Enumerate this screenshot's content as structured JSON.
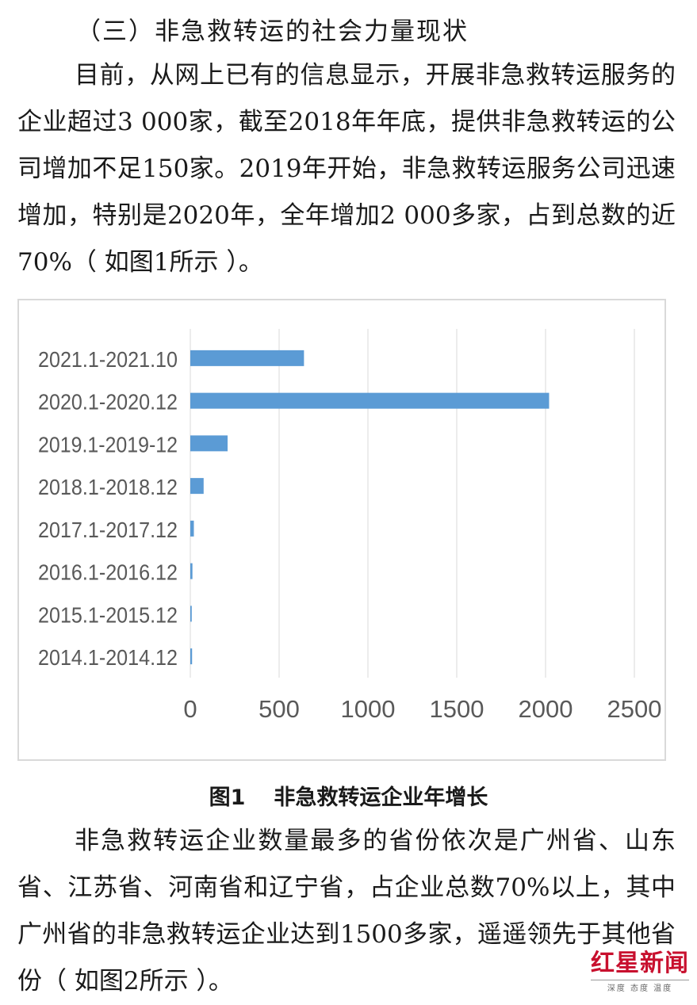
{
  "section_title": "（三）非急救转运的社会力量现状",
  "paragraph1": "目前，从网上已有的信息显示，开展非急救转运服务的企业超过3 000家，截至2018年年底，提供非急救转运的公司增加不足150家。2019年开始，非急救转运服务公司迅速增加，特别是2020年，全年增加2 000多家，占到总数的近70%（ 如图1所示 ）。",
  "figure_caption": {
    "number": "图1",
    "title": "非急救转运企业年增长"
  },
  "paragraph2": "非急救转运企业数量最多的省份依次是广州省、山东省、江苏省、河南省和辽宁省，占企业总数70%以上，其中广州省的非急救转运企业达到1500多家，遥遥领先于其他省份（ 如图2所示 ）。",
  "watermark": {
    "name": "红星新闻",
    "tagline": "深度 态度 温度"
  },
  "chart_data": {
    "type": "bar",
    "orientation": "horizontal",
    "categories": [
      "2021.1-2021.10",
      "2020.1-2020.12",
      "2019.1-2019-12",
      "2018.1-2018.12",
      "2017.1-2017.12",
      "2016.1-2016.12",
      "2015.1-2015.12",
      "2014.1-2014.12"
    ],
    "values": [
      640,
      2020,
      210,
      75,
      20,
      12,
      8,
      10
    ],
    "xlim": [
      0,
      2500
    ],
    "xticks": [
      "0",
      "500",
      "1000",
      "1500",
      "2000",
      "2500"
    ],
    "grid": true,
    "bar_color": "#5b9bd5",
    "title": "",
    "xlabel": "",
    "ylabel": ""
  }
}
